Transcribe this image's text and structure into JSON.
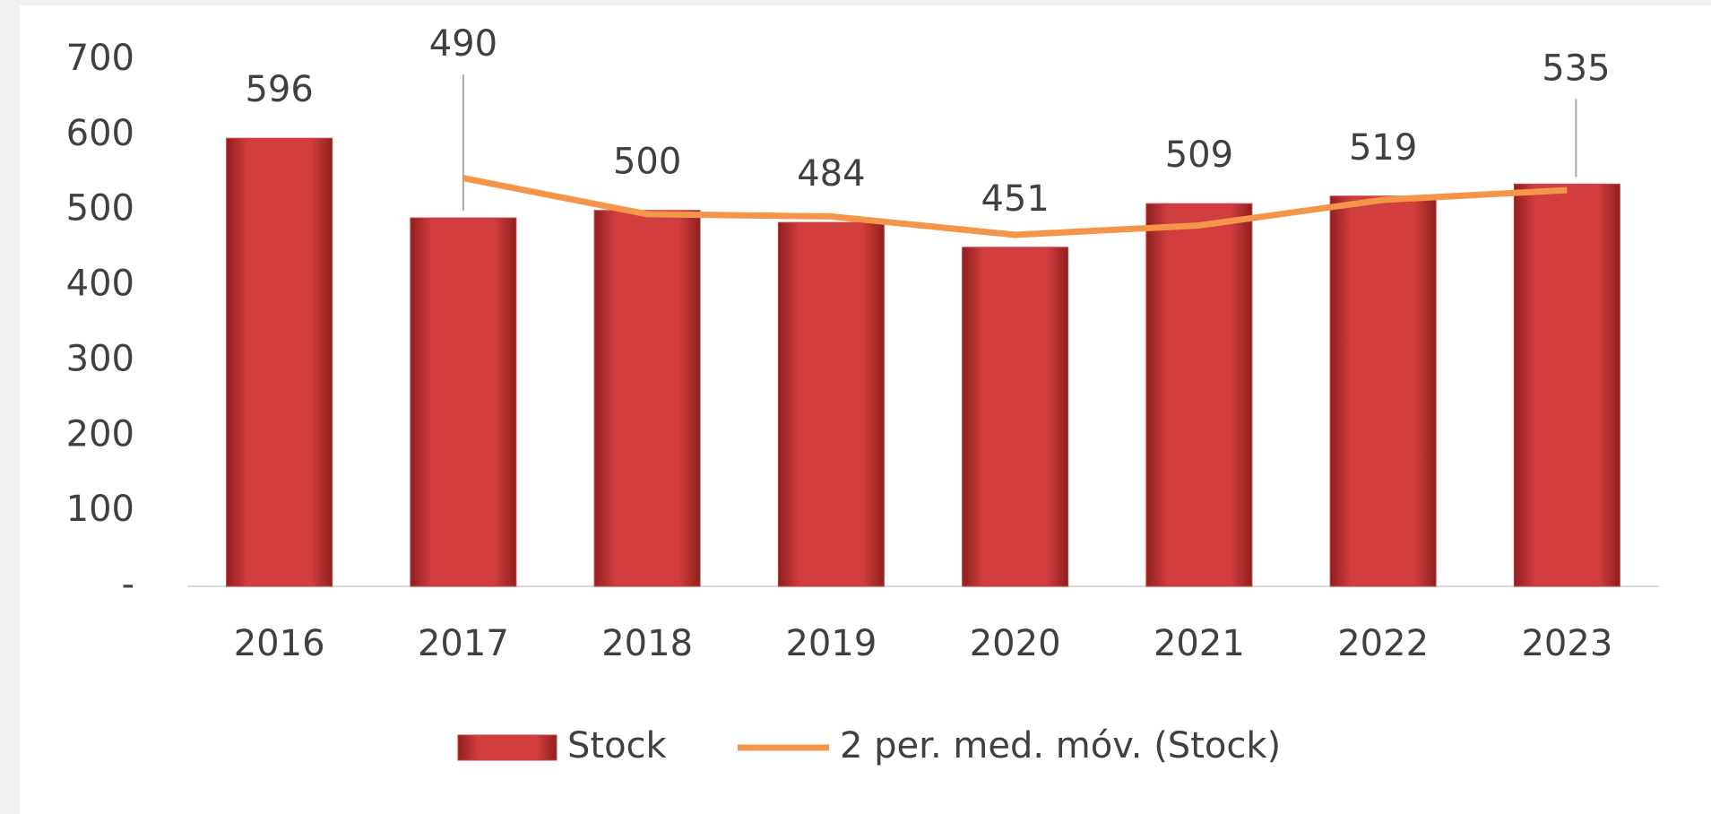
{
  "chart_data": {
    "type": "bar",
    "categories": [
      "2016",
      "2017",
      "2018",
      "2019",
      "2020",
      "2021",
      "2022",
      "2023"
    ],
    "series": [
      {
        "name": "Stock",
        "type": "bar",
        "color": "#d33c3c",
        "values": [
          596,
          490,
          500,
          484,
          451,
          509,
          519,
          535
        ]
      },
      {
        "name": "2 per. med. móv. (Stock)",
        "type": "line",
        "color": "#f4954a",
        "values": [
          null,
          543,
          495,
          492,
          467.5,
          480,
          514,
          527
        ]
      }
    ],
    "ylim": [
      0,
      700
    ],
    "yticks": [
      {
        "value": 0,
        "label": "-"
      },
      100,
      200,
      300,
      400,
      500,
      600,
      700
    ],
    "grid": false,
    "legend": "bottom"
  }
}
